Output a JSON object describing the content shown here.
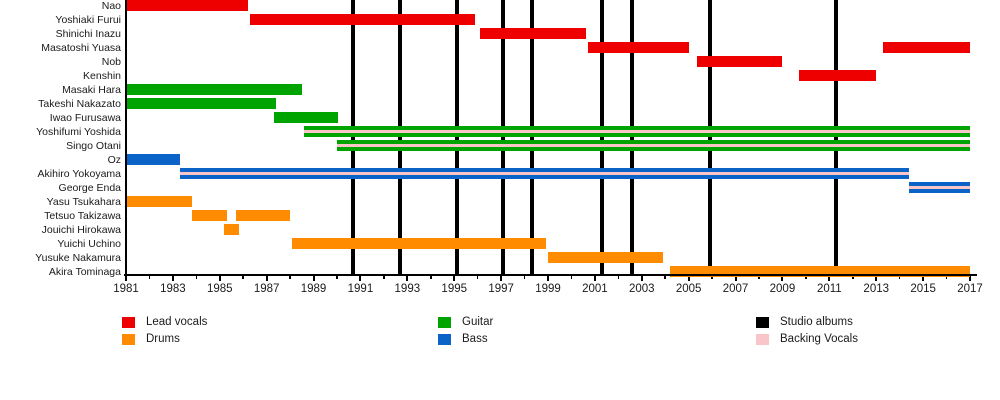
{
  "chart_data": {
    "type": "timeline",
    "title": "",
    "x_axis": {
      "start_year": 1981,
      "end_year": 2017,
      "tick_label_years": [
        1981,
        1983,
        1985,
        1987,
        1989,
        1991,
        1993,
        1995,
        1997,
        1999,
        2001,
        2003,
        2005,
        2007,
        2009,
        2011,
        2013,
        2015,
        2017
      ],
      "minor_tick_years": [
        1982,
        1984,
        1986,
        1988,
        1990,
        1992,
        1994,
        1996,
        1998,
        2000,
        2002,
        2004,
        2006,
        2008,
        2010,
        2012,
        2014,
        2016
      ],
      "grid": false
    },
    "colors": {
      "lead_vocals": "#ee0000",
      "drums": "#ff8c00",
      "guitar": "#00a400",
      "bass": "#0b63c8",
      "backing_vocals": "#f9c5c8",
      "studio_albums": "#000000"
    },
    "members": [
      {
        "name": "Nao",
        "role": "lead_vocals",
        "backing_vocals": false,
        "stints": [
          [
            1981.0,
            1986.2
          ]
        ]
      },
      {
        "name": "Yoshiaki Furui",
        "role": "lead_vocals",
        "backing_vocals": false,
        "stints": [
          [
            1986.3,
            1995.9
          ]
        ]
      },
      {
        "name": "Shinichi Inazu",
        "role": "lead_vocals",
        "backing_vocals": false,
        "stints": [
          [
            1996.1,
            2000.6
          ]
        ]
      },
      {
        "name": "Masatoshi Yuasa",
        "role": "lead_vocals",
        "backing_vocals": false,
        "stints": [
          [
            2000.7,
            2005.0
          ],
          [
            2013.3,
            2017.0
          ]
        ]
      },
      {
        "name": "Nob",
        "role": "lead_vocals",
        "backing_vocals": false,
        "stints": [
          [
            2005.35,
            2009.0
          ]
        ]
      },
      {
        "name": "Kenshin",
        "role": "lead_vocals",
        "backing_vocals": false,
        "stints": [
          [
            2009.7,
            2013.0
          ]
        ]
      },
      {
        "name": "Masaki Hara",
        "role": "guitar",
        "backing_vocals": false,
        "stints": [
          [
            1981.0,
            1988.5
          ]
        ]
      },
      {
        "name": "Takeshi Nakazato",
        "role": "guitar",
        "backing_vocals": false,
        "stints": [
          [
            1981.0,
            1987.4
          ]
        ]
      },
      {
        "name": "Iwao Furusawa",
        "role": "guitar",
        "backing_vocals": false,
        "stints": [
          [
            1987.3,
            1990.05
          ]
        ]
      },
      {
        "name": "Yoshifumi Yoshida",
        "role": "guitar",
        "backing_vocals": true,
        "stints": [
          [
            1988.6,
            2017.0
          ]
        ]
      },
      {
        "name": "Singo Otani",
        "role": "guitar",
        "backing_vocals": true,
        "stints": [
          [
            1990.0,
            2017.0
          ]
        ]
      },
      {
        "name": "Oz",
        "role": "bass",
        "backing_vocals": false,
        "stints": [
          [
            1981.0,
            1983.3
          ]
        ]
      },
      {
        "name": "Akihiro Yokoyama",
        "role": "bass",
        "backing_vocals": true,
        "stints": [
          [
            1983.3,
            2014.4
          ]
        ]
      },
      {
        "name": "George Enda",
        "role": "bass",
        "backing_vocals": true,
        "stints": [
          [
            2014.4,
            2017.0
          ]
        ]
      },
      {
        "name": "Yasu Tsukahara",
        "role": "drums",
        "backing_vocals": false,
        "stints": [
          [
            1981.0,
            1983.8
          ]
        ]
      },
      {
        "name": "Tetsuo Takizawa",
        "role": "drums",
        "backing_vocals": false,
        "stints": [
          [
            1983.8,
            1985.3
          ],
          [
            1985.7,
            1988.0
          ]
        ]
      },
      {
        "name": "Jouichi Hirokawa",
        "role": "drums",
        "backing_vocals": false,
        "stints": [
          [
            1985.2,
            1985.8
          ]
        ]
      },
      {
        "name": "Yuichi Uchino",
        "role": "drums",
        "backing_vocals": false,
        "stints": [
          [
            1988.1,
            1998.9
          ]
        ]
      },
      {
        "name": "Yusuke Nakamura",
        "role": "drums",
        "backing_vocals": false,
        "stints": [
          [
            1999.0,
            2003.9
          ]
        ]
      },
      {
        "name": "Akira Tominaga",
        "role": "drums",
        "backing_vocals": false,
        "stints": [
          [
            2004.2,
            2017.0
          ]
        ]
      }
    ],
    "studio_album_years": [
      1990.7,
      1992.7,
      1995.1,
      1997.1,
      1998.3,
      2001.3,
      2002.6,
      2005.9,
      2011.3
    ],
    "legend_position": "bottom"
  },
  "legend": {
    "items": [
      {
        "label": "Lead vocals",
        "color_key": "lead_vocals"
      },
      {
        "label": "Drums",
        "color_key": "drums"
      },
      {
        "label": "Guitar",
        "color_key": "guitar"
      },
      {
        "label": "Bass",
        "color_key": "bass"
      },
      {
        "label": "Studio albums",
        "color_key": "studio_albums"
      },
      {
        "label": "Backing Vocals",
        "color_key": "backing_vocals"
      }
    ]
  }
}
